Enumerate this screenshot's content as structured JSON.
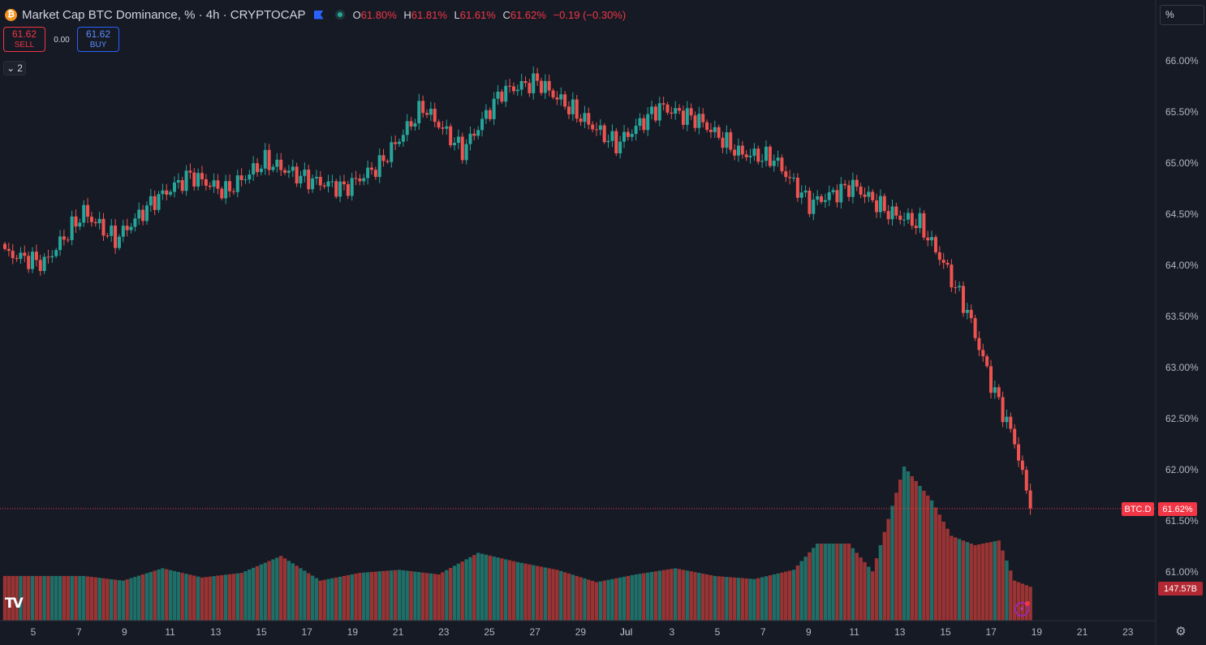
{
  "header": {
    "symbol_icon": "bitcoin-icon",
    "title": "Market Cap BTC Dominance, % · 4h · CRYPTOCAP",
    "open_key": "O",
    "open": "61.80%",
    "high_key": "H",
    "high": "61.81%",
    "low_key": "L",
    "low": "61.61%",
    "close_key": "C",
    "close": "61.62%",
    "change": "−0.19 (−0.30%)"
  },
  "trade": {
    "sell_price": "61.62",
    "sell_label": "SELL",
    "spread": "0.00",
    "buy_price": "61.62",
    "buy_label": "BUY"
  },
  "indicators_toggle": "2",
  "scale_mode": "%",
  "logo": "TV",
  "colors": {
    "up": "#26a69a",
    "down": "#ef5350",
    "vol_up": "#1f6f68",
    "vol_down": "#9a3434",
    "background": "#161a25",
    "grid": "#1e222d"
  },
  "price_axis": {
    "labels": [
      "66.00%",
      "65.50%",
      "65.00%",
      "64.50%",
      "64.00%",
      "63.50%",
      "63.00%",
      "62.50%",
      "62.00%",
      "61.50%",
      "61.00%"
    ],
    "values": [
      66.0,
      65.5,
      65.0,
      64.5,
      64.0,
      63.5,
      63.0,
      62.5,
      62.0,
      61.5,
      61.0
    ]
  },
  "date_axis": [
    "5",
    "7",
    "9",
    "11",
    "13",
    "15",
    "17",
    "19",
    "21",
    "23",
    "25",
    "27",
    "29",
    "Jul",
    "3",
    "5",
    "7",
    "9",
    "11",
    "13",
    "15",
    "17",
    "19",
    "21",
    "23"
  ],
  "last_price_label": "BTC.D",
  "last_price": "61.62%",
  "volume_label": "147.57B",
  "chart_data": {
    "type": "candlestick",
    "title": "Market Cap BTC Dominance, %",
    "interval": "4h",
    "source": "CRYPTOCAP",
    "ylim": [
      60.6,
      66.45
    ],
    "grid": false,
    "last": 61.62,
    "anchors": [
      [
        0,
        64.12
      ],
      [
        10,
        64.02
      ],
      [
        20,
        64.52
      ],
      [
        28,
        64.25
      ],
      [
        38,
        64.64
      ],
      [
        47,
        64.88
      ],
      [
        56,
        64.72
      ],
      [
        66,
        65.02
      ],
      [
        76,
        64.85
      ],
      [
        86,
        64.75
      ],
      [
        95,
        64.98
      ],
      [
        106,
        65.55
      ],
      [
        116,
        65.12
      ],
      [
        126,
        65.7
      ],
      [
        135,
        65.8
      ],
      [
        146,
        65.45
      ],
      [
        155,
        65.18
      ],
      [
        166,
        65.55
      ],
      [
        176,
        65.42
      ],
      [
        186,
        65.1
      ],
      [
        195,
        65.04
      ],
      [
        204,
        64.6
      ],
      [
        215,
        64.78
      ],
      [
        224,
        64.52
      ],
      [
        232,
        64.4
      ],
      [
        238,
        64.02
      ],
      [
        244,
        63.55
      ],
      [
        250,
        62.85
      ],
      [
        256,
        62.28
      ],
      [
        260,
        61.62
      ]
    ],
    "volume_relative": [
      [
        0,
        0.29
      ],
      [
        20,
        0.29
      ],
      [
        30,
        0.26
      ],
      [
        40,
        0.34
      ],
      [
        50,
        0.28
      ],
      [
        60,
        0.31
      ],
      [
        70,
        0.42
      ],
      [
        80,
        0.26
      ],
      [
        90,
        0.31
      ],
      [
        100,
        0.33
      ],
      [
        110,
        0.3
      ],
      [
        120,
        0.44
      ],
      [
        130,
        0.38
      ],
      [
        140,
        0.33
      ],
      [
        150,
        0.25
      ],
      [
        160,
        0.3
      ],
      [
        170,
        0.34
      ],
      [
        180,
        0.29
      ],
      [
        190,
        0.27
      ],
      [
        200,
        0.33
      ],
      [
        206,
        0.5
      ],
      [
        214,
        0.5
      ],
      [
        220,
        0.32
      ],
      [
        228,
        1.0
      ],
      [
        235,
        0.78
      ],
      [
        240,
        0.55
      ],
      [
        246,
        0.49
      ],
      [
        252,
        0.52
      ],
      [
        256,
        0.26
      ],
      [
        260,
        0.22
      ]
    ]
  }
}
